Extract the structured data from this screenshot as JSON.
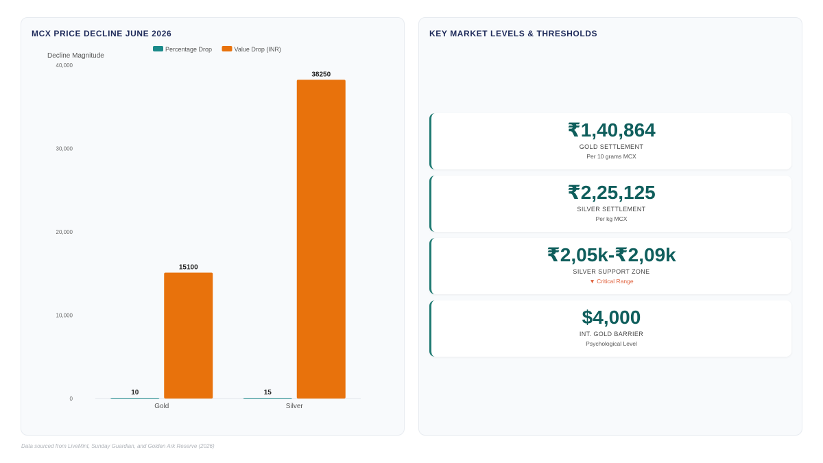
{
  "left": {
    "title": "MCX PRICE DECLINE JUNE 2026"
  },
  "right": {
    "title": "KEY MARKET LEVELS & THRESHOLDS"
  },
  "chart_data": {
    "type": "bar",
    "categories": [
      "Gold",
      "Silver"
    ],
    "series": [
      {
        "name": "Percentage Drop",
        "values": [
          10,
          15
        ],
        "color": "#1a8a8a"
      },
      {
        "name": "Value Drop (INR)",
        "values": [
          15100,
          38250
        ],
        "color": "#e8720c"
      }
    ],
    "ylabel": "Decline Magnitude",
    "yticks": [
      0,
      10000,
      20000,
      30000,
      40000
    ],
    "ytick_labels": [
      "0",
      "10,000",
      "20,000",
      "30,000",
      "40,000"
    ],
    "ylim": [
      0,
      40000
    ],
    "legend_position": "top-center",
    "grid": false
  },
  "cards": [
    {
      "value": "₹1,40,864",
      "label": "GOLD SETTLEMENT",
      "sub": "Per 10 grams MCX",
      "alert": false
    },
    {
      "value": "₹2,25,125",
      "label": "SILVER SETTLEMENT",
      "sub": "Per kg MCX",
      "alert": false
    },
    {
      "value": "₹2,05k-₹2,09k",
      "label": "SILVER SUPPORT ZONE",
      "sub": "▼ Critical Range",
      "alert": true
    },
    {
      "value": "$4,000",
      "label": "INT. GOLD BARRIER",
      "sub": "Psychological Level",
      "alert": false
    }
  ],
  "footer": {
    "note": "Data sourced from LiveMint, Sunday Guardian, and Golden Ark Reserve (2026)"
  }
}
